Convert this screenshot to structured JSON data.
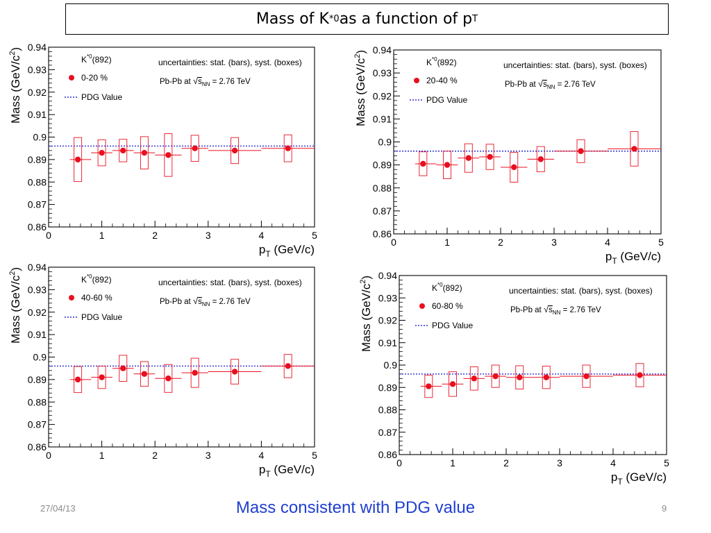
{
  "slide": {
    "title_main": "Mass of K",
    "title_sup": "*0",
    "title_mid": " as a function of p",
    "title_sub": "T",
    "footer_date": "27/04/13",
    "footer_note": "Mass consistent with PDG value",
    "page_number": "9"
  },
  "colors": {
    "data": "#e8101f",
    "pdg": "#2a2ad0",
    "note": "#1f3fd0"
  },
  "chart_data": [
    {
      "type": "scatter",
      "particle": "K",
      "particle_sup": "*0",
      "particle_tail": "(892)",
      "series_name": "0-20 %",
      "pdg_label": "PDG Value",
      "uncertainty_note": "uncertainties: stat. (bars), syst. (boxes)",
      "system": "Pb-Pb at",
      "energy": "= 2.76 TeV",
      "sqrt_label": "s",
      "sqrt_sub": "NN",
      "xlabel_main": "p",
      "xlabel_sub": "T",
      "xlabel_unit": " (GeV/c)",
      "ylabel_main": "Mass (GeV/c",
      "ylabel_sup": "2",
      "ylabel_tail": ")",
      "xlim": [
        0,
        5
      ],
      "ylim": [
        0.86,
        0.94
      ],
      "xticks": [
        "0",
        "1",
        "2",
        "3",
        "4",
        "5"
      ],
      "yticks": [
        "0.86",
        "0.87",
        "0.88",
        "0.89",
        "0.9",
        "0.91",
        "0.92",
        "0.93",
        "0.94"
      ],
      "pdg_value": 0.896,
      "points": [
        {
          "x": 0.55,
          "xlo": 0.4,
          "xhi": 0.8,
          "y": 0.89,
          "syst": 0.0098
        },
        {
          "x": 1.0,
          "xlo": 0.8,
          "xhi": 1.2,
          "y": 0.893,
          "syst": 0.0058
        },
        {
          "x": 1.4,
          "xlo": 1.2,
          "xhi": 1.6,
          "y": 0.894,
          "syst": 0.005
        },
        {
          "x": 1.8,
          "xlo": 1.6,
          "xhi": 2.0,
          "y": 0.893,
          "syst": 0.0072
        },
        {
          "x": 2.25,
          "xlo": 2.0,
          "xhi": 2.5,
          "y": 0.892,
          "syst": 0.0095
        },
        {
          "x": 2.75,
          "xlo": 2.5,
          "xhi": 3.0,
          "y": 0.895,
          "syst": 0.0058
        },
        {
          "x": 3.5,
          "xlo": 3.0,
          "xhi": 4.0,
          "y": 0.894,
          "syst": 0.0058
        },
        {
          "x": 4.5,
          "xlo": 4.0,
          "xhi": 5.0,
          "y": 0.895,
          "syst": 0.006
        }
      ]
    },
    {
      "type": "scatter",
      "particle": "K",
      "particle_sup": "*0",
      "particle_tail": "(892)",
      "series_name": "20-40 %",
      "pdg_label": "PDG Value",
      "uncertainty_note": "uncertainties: stat. (bars), syst. (boxes)",
      "system": "Pb-Pb at",
      "energy": "= 2.76 TeV",
      "sqrt_label": "s",
      "sqrt_sub": "NN",
      "xlabel_main": "p",
      "xlabel_sub": "T",
      "xlabel_unit": " (GeV/c)",
      "ylabel_main": "Mass (GeV/c",
      "ylabel_sup": "2",
      "ylabel_tail": ")",
      "xlim": [
        0,
        5
      ],
      "ylim": [
        0.86,
        0.94
      ],
      "xticks": [
        "0",
        "1",
        "2",
        "3",
        "4",
        "5"
      ],
      "yticks": [
        "0.86",
        "0.87",
        "0.88",
        "0.89",
        "0.9",
        "0.91",
        "0.92",
        "0.93",
        "0.94"
      ],
      "pdg_value": 0.896,
      "points": [
        {
          "x": 0.55,
          "xlo": 0.4,
          "xhi": 0.8,
          "y": 0.8905,
          "syst": 0.0052
        },
        {
          "x": 1.0,
          "xlo": 0.8,
          "xhi": 1.2,
          "y": 0.89,
          "syst": 0.006
        },
        {
          "x": 1.4,
          "xlo": 1.2,
          "xhi": 1.6,
          "y": 0.893,
          "syst": 0.0062
        },
        {
          "x": 1.8,
          "xlo": 1.6,
          "xhi": 2.0,
          "y": 0.8935,
          "syst": 0.0055
        },
        {
          "x": 2.25,
          "xlo": 2.0,
          "xhi": 2.5,
          "y": 0.889,
          "syst": 0.0065
        },
        {
          "x": 2.75,
          "xlo": 2.5,
          "xhi": 3.0,
          "y": 0.8925,
          "syst": 0.0055
        },
        {
          "x": 3.5,
          "xlo": 3.0,
          "xhi": 4.0,
          "y": 0.896,
          "syst": 0.005
        },
        {
          "x": 4.5,
          "xlo": 4.0,
          "xhi": 5.0,
          "y": 0.897,
          "syst": 0.0075
        }
      ]
    },
    {
      "type": "scatter",
      "particle": "K",
      "particle_sup": "*0",
      "particle_tail": "(892)",
      "series_name": "40-60 %",
      "pdg_label": "PDG Value",
      "uncertainty_note": "uncertainties: stat. (bars), syst. (boxes)",
      "system": "Pb-Pb at",
      "energy": "= 2.76 TeV",
      "sqrt_label": "s",
      "sqrt_sub": "NN",
      "xlabel_main": "p",
      "xlabel_sub": "T",
      "xlabel_unit": " (GeV/c)",
      "ylabel_main": "Mass (GeV/c",
      "ylabel_sup": "2",
      "ylabel_tail": ")",
      "xlim": [
        0,
        5
      ],
      "ylim": [
        0.86,
        0.94
      ],
      "xticks": [
        "0",
        "1",
        "2",
        "3",
        "4",
        "5"
      ],
      "yticks": [
        "0.86",
        "0.87",
        "0.88",
        "0.89",
        "0.9",
        "0.91",
        "0.92",
        "0.93",
        "0.94"
      ],
      "pdg_value": 0.896,
      "points": [
        {
          "x": 0.55,
          "xlo": 0.4,
          "xhi": 0.8,
          "y": 0.89,
          "syst": 0.0058
        },
        {
          "x": 1.0,
          "xlo": 0.8,
          "xhi": 1.2,
          "y": 0.891,
          "syst": 0.005
        },
        {
          "x": 1.4,
          "xlo": 1.2,
          "xhi": 1.6,
          "y": 0.895,
          "syst": 0.0058
        },
        {
          "x": 1.8,
          "xlo": 1.6,
          "xhi": 2.0,
          "y": 0.8925,
          "syst": 0.0055
        },
        {
          "x": 2.25,
          "xlo": 2.0,
          "xhi": 2.5,
          "y": 0.8905,
          "syst": 0.0062
        },
        {
          "x": 2.75,
          "xlo": 2.5,
          "xhi": 3.0,
          "y": 0.893,
          "syst": 0.0065
        },
        {
          "x": 3.5,
          "xlo": 3.0,
          "xhi": 4.0,
          "y": 0.8935,
          "syst": 0.0055
        },
        {
          "x": 4.5,
          "xlo": 4.0,
          "xhi": 5.0,
          "y": 0.896,
          "syst": 0.0052
        }
      ]
    },
    {
      "type": "scatter",
      "particle": "K",
      "particle_sup": "*0",
      "particle_tail": "(892)",
      "series_name": "60-80 %",
      "pdg_label": "PDG Value",
      "uncertainty_note": "uncertainties: stat. (bars), syst. (boxes)",
      "system": "Pb-Pb at",
      "energy": "= 2.76 TeV",
      "sqrt_label": "s",
      "sqrt_sub": "NN",
      "xlabel_main": "p",
      "xlabel_sub": "T",
      "xlabel_unit": " (GeV/c)",
      "ylabel_main": "Mass (GeV/c",
      "ylabel_sup": "2",
      "ylabel_tail": ")",
      "xlim": [
        0,
        5
      ],
      "ylim": [
        0.86,
        0.94
      ],
      "xticks": [
        "0",
        "1",
        "2",
        "3",
        "4",
        "5"
      ],
      "yticks": [
        "0.86",
        "0.87",
        "0.88",
        "0.89",
        "0.9",
        "0.91",
        "0.92",
        "0.93",
        "0.94"
      ],
      "pdg_value": 0.896,
      "points": [
        {
          "x": 0.55,
          "xlo": 0.4,
          "xhi": 0.8,
          "y": 0.8905,
          "syst": 0.005
        },
        {
          "x": 1.0,
          "xlo": 0.8,
          "xhi": 1.2,
          "y": 0.8915,
          "syst": 0.0055
        },
        {
          "x": 1.4,
          "xlo": 1.2,
          "xhi": 1.6,
          "y": 0.894,
          "syst": 0.0052
        },
        {
          "x": 1.8,
          "xlo": 1.6,
          "xhi": 2.0,
          "y": 0.895,
          "syst": 0.005
        },
        {
          "x": 2.25,
          "xlo": 2.0,
          "xhi": 2.5,
          "y": 0.8945,
          "syst": 0.0052
        },
        {
          "x": 2.75,
          "xlo": 2.5,
          "xhi": 3.0,
          "y": 0.8945,
          "syst": 0.005
        },
        {
          "x": 3.5,
          "xlo": 3.0,
          "xhi": 4.0,
          "y": 0.895,
          "syst": 0.005
        },
        {
          "x": 4.5,
          "xlo": 4.0,
          "xhi": 5.0,
          "y": 0.8955,
          "syst": 0.0052
        }
      ]
    }
  ]
}
